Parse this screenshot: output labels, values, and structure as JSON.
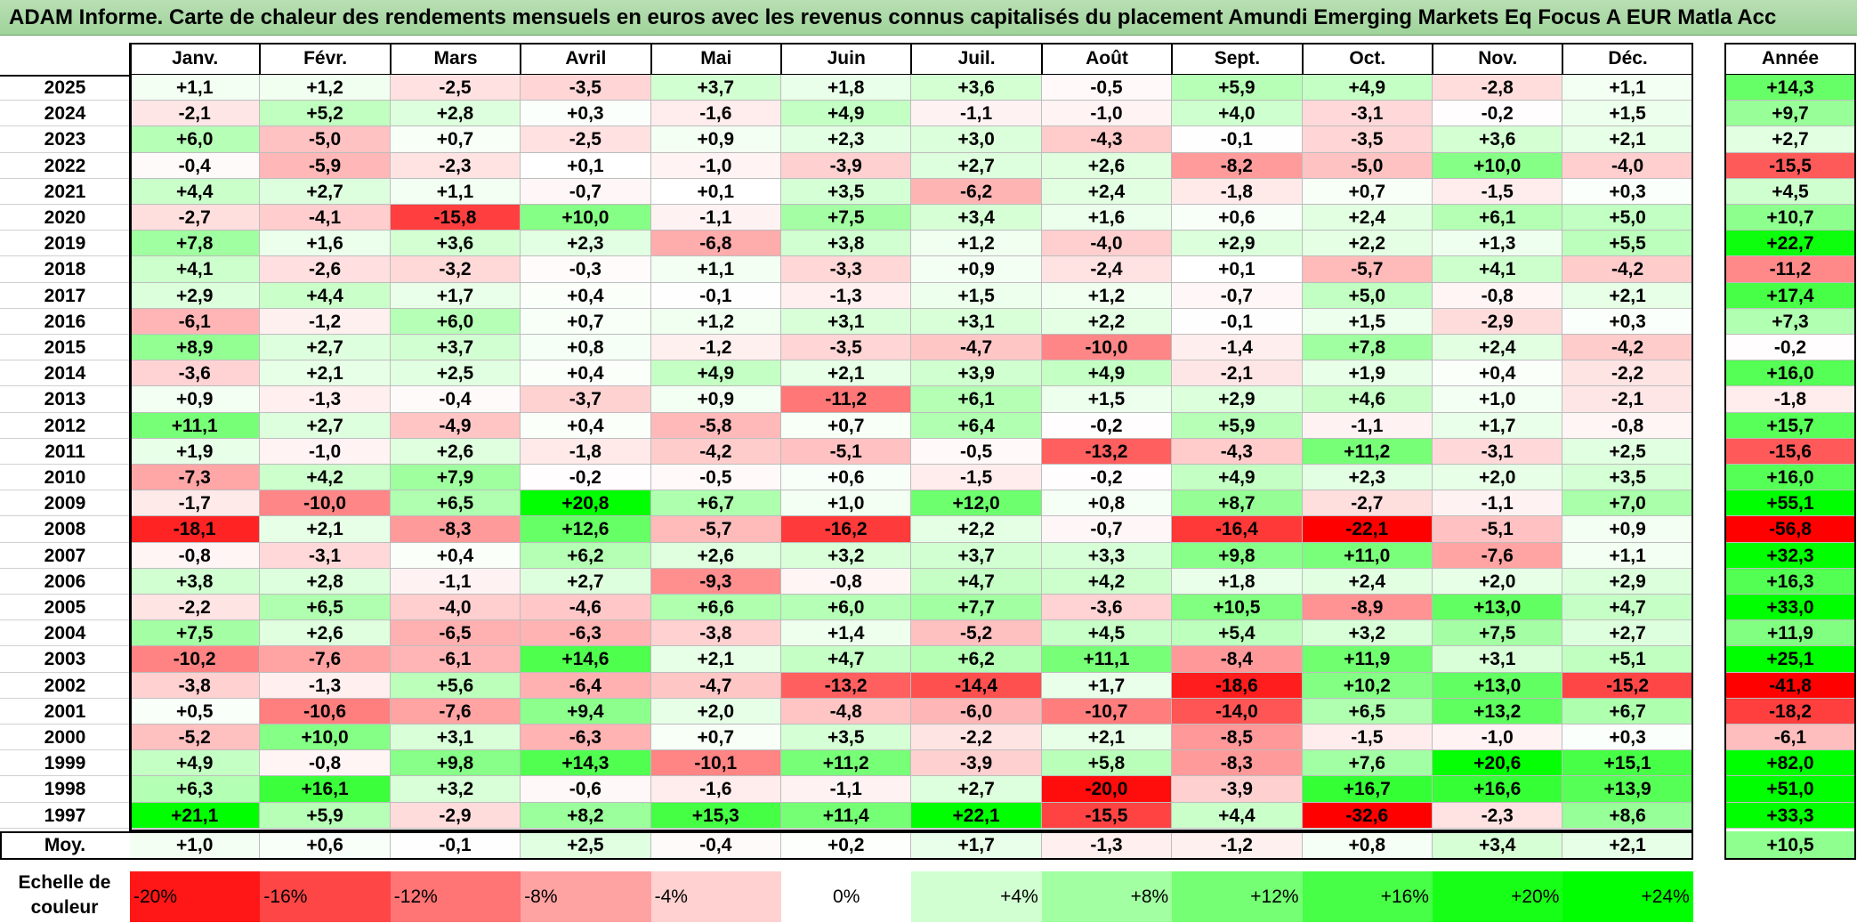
{
  "title": "ADAM Informe. Carte de chaleur des rendements mensuels en euros avec les revenus connus capitalisés du placement Amundi Emerging Markets Eq Focus A EUR Matla Acc",
  "chart_data": {
    "type": "heatmap",
    "columns": [
      "Janv.",
      "Févr.",
      "Mars",
      "Avril",
      "Mai",
      "Juin",
      "Juil.",
      "Août",
      "Sept.",
      "Oct.",
      "Nov.",
      "Déc."
    ],
    "year_column": "Année",
    "rows": [
      {
        "year": "2025",
        "values": [
          "+1,1",
          "+1,2",
          "-2,5",
          "-3,5",
          "+3,7",
          "+1,8",
          "+3,6",
          "-0,5",
          "+5,9",
          "+4,9",
          "-2,8",
          "+1,1"
        ],
        "annual": "+14,3"
      },
      {
        "year": "2024",
        "values": [
          "-2,1",
          "+5,2",
          "+2,8",
          "+0,3",
          "-1,6",
          "+4,9",
          "-1,1",
          "-1,0",
          "+4,0",
          "-3,1",
          "-0,2",
          "+1,5"
        ],
        "annual": "+9,7"
      },
      {
        "year": "2023",
        "values": [
          "+6,0",
          "-5,0",
          "+0,7",
          "-2,5",
          "+0,9",
          "+2,3",
          "+3,0",
          "-4,3",
          "-0,1",
          "-3,5",
          "+3,6",
          "+2,1"
        ],
        "annual": "+2,7"
      },
      {
        "year": "2022",
        "values": [
          "-0,4",
          "-5,9",
          "-2,3",
          "+0,1",
          "-1,0",
          "-3,9",
          "+2,7",
          "+2,6",
          "-8,2",
          "-5,0",
          "+10,0",
          "-4,0"
        ],
        "annual": "-15,5"
      },
      {
        "year": "2021",
        "values": [
          "+4,4",
          "+2,7",
          "+1,1",
          "-0,7",
          "+0,1",
          "+3,5",
          "-6,2",
          "+2,4",
          "-1,8",
          "+0,7",
          "-1,5",
          "+0,3"
        ],
        "annual": "+4,5"
      },
      {
        "year": "2020",
        "values": [
          "-2,7",
          "-4,1",
          "-15,8",
          "+10,0",
          "-1,1",
          "+7,5",
          "+3,4",
          "+1,6",
          "+0,6",
          "+2,4",
          "+6,1",
          "+5,0"
        ],
        "annual": "+10,7"
      },
      {
        "year": "2019",
        "values": [
          "+7,8",
          "+1,6",
          "+3,6",
          "+2,3",
          "-6,8",
          "+3,8",
          "+1,2",
          "-4,0",
          "+2,9",
          "+2,2",
          "+1,3",
          "+5,5"
        ],
        "annual": "+22,7"
      },
      {
        "year": "2018",
        "values": [
          "+4,1",
          "-2,6",
          "-3,2",
          "-0,3",
          "+1,1",
          "-3,3",
          "+0,9",
          "-2,4",
          "+0,1",
          "-5,7",
          "+4,1",
          "-4,2"
        ],
        "annual": "-11,2"
      },
      {
        "year": "2017",
        "values": [
          "+2,9",
          "+4,4",
          "+1,7",
          "+0,4",
          "-0,1",
          "-1,3",
          "+1,5",
          "+1,2",
          "-0,7",
          "+5,0",
          "-0,8",
          "+2,1"
        ],
        "annual": "+17,4"
      },
      {
        "year": "2016",
        "values": [
          "-6,1",
          "-1,2",
          "+6,0",
          "+0,7",
          "+1,2",
          "+3,1",
          "+3,1",
          "+2,2",
          "-0,1",
          "+1,5",
          "-2,9",
          "+0,3"
        ],
        "annual": "+7,3"
      },
      {
        "year": "2015",
        "values": [
          "+8,9",
          "+2,7",
          "+3,7",
          "+0,8",
          "-1,2",
          "-3,5",
          "-4,7",
          "-10,0",
          "-1,4",
          "+7,8",
          "+2,4",
          "-4,2"
        ],
        "annual": "-0,2"
      },
      {
        "year": "2014",
        "values": [
          "-3,6",
          "+2,1",
          "+2,5",
          "+0,4",
          "+4,9",
          "+2,1",
          "+3,9",
          "+4,9",
          "-2,1",
          "+1,9",
          "+0,4",
          "-2,2"
        ],
        "annual": "+16,0"
      },
      {
        "year": "2013",
        "values": [
          "+0,9",
          "-1,3",
          "-0,4",
          "-3,7",
          "+0,9",
          "-11,2",
          "+6,1",
          "+1,5",
          "+2,9",
          "+4,6",
          "+1,0",
          "-2,1"
        ],
        "annual": "-1,8"
      },
      {
        "year": "2012",
        "values": [
          "+11,1",
          "+2,7",
          "-4,9",
          "+0,4",
          "-5,8",
          "+0,7",
          "+6,4",
          "-0,2",
          "+5,9",
          "-1,1",
          "+1,7",
          "-0,8"
        ],
        "annual": "+15,7"
      },
      {
        "year": "2011",
        "values": [
          "+1,9",
          "-1,0",
          "+2,6",
          "-1,8",
          "-4,2",
          "-5,1",
          "-0,5",
          "-13,2",
          "-4,3",
          "+11,2",
          "-3,1",
          "+2,5"
        ],
        "annual": "-15,6"
      },
      {
        "year": "2010",
        "values": [
          "-7,3",
          "+4,2",
          "+7,9",
          "-0,2",
          "-0,5",
          "+0,6",
          "-1,5",
          "-0,2",
          "+4,9",
          "+2,3",
          "+2,0",
          "+3,5"
        ],
        "annual": "+16,0"
      },
      {
        "year": "2009",
        "values": [
          "-1,7",
          "-10,0",
          "+6,5",
          "+20,8",
          "+6,7",
          "+1,0",
          "+12,0",
          "+0,8",
          "+8,7",
          "-2,7",
          "-1,1",
          "+7,0"
        ],
        "annual": "+55,1"
      },
      {
        "year": "2008",
        "values": [
          "-18,1",
          "+2,1",
          "-8,3",
          "+12,6",
          "-5,7",
          "-16,2",
          "+2,2",
          "-0,7",
          "-16,4",
          "-22,1",
          "-5,1",
          "+0,9"
        ],
        "annual": "-56,8"
      },
      {
        "year": "2007",
        "values": [
          "-0,8",
          "-3,1",
          "+0,4",
          "+6,2",
          "+2,6",
          "+3,2",
          "+3,7",
          "+3,3",
          "+9,8",
          "+11,0",
          "-7,6",
          "+1,1"
        ],
        "annual": "+32,3"
      },
      {
        "year": "2006",
        "values": [
          "+3,8",
          "+2,8",
          "-1,1",
          "+2,7",
          "-9,3",
          "-0,8",
          "+4,7",
          "+4,2",
          "+1,8",
          "+2,4",
          "+2,0",
          "+2,9"
        ],
        "annual": "+16,3"
      },
      {
        "year": "2005",
        "values": [
          "-2,2",
          "+6,5",
          "-4,0",
          "-4,6",
          "+6,6",
          "+6,0",
          "+7,7",
          "-3,6",
          "+10,5",
          "-8,9",
          "+13,0",
          "+4,7"
        ],
        "annual": "+33,0"
      },
      {
        "year": "2004",
        "values": [
          "+7,5",
          "+2,6",
          "-6,5",
          "-6,3",
          "-3,8",
          "+1,4",
          "-5,2",
          "+4,5",
          "+5,4",
          "+3,2",
          "+7,5",
          "+2,7"
        ],
        "annual": "+11,9"
      },
      {
        "year": "2003",
        "values": [
          "-10,2",
          "-7,6",
          "-6,1",
          "+14,6",
          "+2,1",
          "+4,7",
          "+6,2",
          "+11,1",
          "-8,4",
          "+11,9",
          "+3,1",
          "+5,1"
        ],
        "annual": "+25,1"
      },
      {
        "year": "2002",
        "values": [
          "-3,8",
          "-1,3",
          "+5,6",
          "-6,4",
          "-4,7",
          "-13,2",
          "-14,4",
          "+1,7",
          "-18,6",
          "+10,2",
          "+13,0",
          "-15,2"
        ],
        "annual": "-41,8"
      },
      {
        "year": "2001",
        "values": [
          "+0,5",
          "-10,6",
          "-7,6",
          "+9,4",
          "+2,0",
          "-4,8",
          "-6,0",
          "-10,7",
          "-14,0",
          "+6,5",
          "+13,2",
          "+6,7"
        ],
        "annual": "-18,2"
      },
      {
        "year": "2000",
        "values": [
          "-5,2",
          "+10,0",
          "+3,1",
          "-6,3",
          "+0,7",
          "+3,5",
          "-2,2",
          "+2,1",
          "-8,5",
          "-1,5",
          "-1,0",
          "+0,3"
        ],
        "annual": "-6,1"
      },
      {
        "year": "1999",
        "values": [
          "+4,9",
          "-0,8",
          "+9,8",
          "+14,3",
          "-10,1",
          "+11,2",
          "-3,9",
          "+5,8",
          "-8,3",
          "+7,6",
          "+20,6",
          "+15,1"
        ],
        "annual": "+82,0"
      },
      {
        "year": "1998",
        "values": [
          "+6,3",
          "+16,1",
          "+3,2",
          "-0,6",
          "-1,6",
          "-1,1",
          "+2,7",
          "-20,0",
          "-3,9",
          "+16,7",
          "+16,6",
          "+13,9"
        ],
        "annual": "+51,0"
      },
      {
        "year": "1997",
        "values": [
          "+21,1",
          "+5,9",
          "-2,9",
          "+8,2",
          "+15,3",
          "+11,4",
          "+22,1",
          "-15,5",
          "+4,4",
          "-32,6",
          "-2,3",
          "+8,6"
        ],
        "annual": "+33,3"
      }
    ],
    "average": {
      "label": "Moy.",
      "values": [
        "+1,0",
        "+0,6",
        "-0,1",
        "+2,5",
        "-0,4",
        "+0,2",
        "+1,7",
        "-1,3",
        "-1,2",
        "+0,8",
        "+3,4",
        "+2,1"
      ],
      "annual": "+10,5"
    },
    "legend": {
      "label": [
        "Echelle de",
        "couleur"
      ],
      "stops": [
        "-20%",
        "-16%",
        "-12%",
        "-8%",
        "-4%",
        "0%",
        "+4%",
        "+8%",
        "+12%",
        "+16%",
        "+20%",
        "+24%"
      ],
      "stop_values": [
        -20,
        -16,
        -12,
        -8,
        -4,
        0,
        4,
        8,
        12,
        16,
        20,
        24
      ]
    },
    "colors": {
      "negative": "#ff0000",
      "neutral": "#ffffff",
      "positive": "#00ff00",
      "title_background": "#a8d8a2"
    }
  }
}
